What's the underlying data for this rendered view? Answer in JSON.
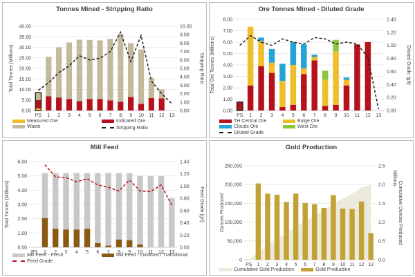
{
  "chart_data": [
    {
      "id": "tonnes-mined",
      "type": "bar",
      "title": "Tonnes Mined - Stripping Ratio",
      "ylabel": "Total Tonnes (Millions)",
      "y2label": "Stripping Ratio",
      "ylim": [
        0,
        40
      ],
      "yticks": [
        0,
        5,
        10,
        15,
        20,
        25,
        30,
        35,
        40
      ],
      "ytick_fmt": "0.00",
      "y2lim": [
        0,
        10
      ],
      "y2ticks": [
        0,
        1,
        2,
        3,
        4,
        5,
        6,
        7,
        8,
        9,
        10
      ],
      "y2tick_fmt": "0.00",
      "categories": [
        "PS",
        "1",
        "2",
        "3",
        "4",
        "5",
        "6",
        "7",
        "8",
        "9",
        "10",
        "11",
        "12",
        "13"
      ],
      "stacked": true,
      "series": [
        {
          "name": "Measured Ore",
          "color": "#f0be2a",
          "values": [
            1,
            0,
            0,
            0,
            0,
            0,
            0,
            0,
            0,
            0,
            0,
            0,
            0,
            0
          ]
        },
        {
          "name": "Indicated Ore",
          "color": "#b5121b",
          "values": [
            4,
            6.8,
            6.2,
            5.5,
            4.5,
            5.5,
            5.5,
            4.8,
            4.2,
            6.4,
            3.2,
            6,
            5.8,
            0
          ]
        },
        {
          "name": "Waste",
          "color": "#c3b99d",
          "values": [
            3.5,
            18.7,
            23.8,
            26.8,
            29.1,
            28,
            27.8,
            29.2,
            32.1,
            25.6,
            25.8,
            9.5,
            4.2,
            0
          ]
        }
      ],
      "lines": [
        {
          "name": "Stripping Ratio",
          "color": "#222222",
          "dashed": true,
          "axis": "right",
          "values": [
            2.4,
            3.3,
            4.5,
            5.3,
            6.5,
            6.0,
            6.2,
            7.0,
            9.3,
            5.8,
            8.9,
            3.5,
            2.0,
            0.8
          ]
        }
      ]
    },
    {
      "id": "ore-tonnes",
      "type": "bar",
      "title": "Ore Tonnes Mined - Diluted Grade",
      "ylabel": "Total Ore Tonnes (Millions)",
      "y2label": "Diluted Grade (g/t)",
      "ylim": [
        0,
        8
      ],
      "yticks": [
        0,
        1,
        2,
        3,
        4,
        5,
        6,
        7,
        8
      ],
      "ytick_fmt": "0.00",
      "y2lim": [
        0,
        1.4
      ],
      "y2ticks": [
        0,
        0.2,
        0.4,
        0.6,
        0.8,
        1.0,
        1.2,
        1.4
      ],
      "y2tick_fmt": "0.00",
      "categories": [
        "PS",
        "1",
        "2",
        "3",
        "4",
        "5",
        "6",
        "7",
        "8",
        "9",
        "10",
        "11",
        "12",
        "13"
      ],
      "stacked": true,
      "series": [
        {
          "name": "TH Central Ore",
          "color": "#b5121b",
          "values": [
            0.75,
            2.2,
            3.9,
            3.3,
            0.3,
            0.5,
            3.2,
            4.4,
            0.4,
            0.5,
            2.2,
            5.8,
            6.0,
            0
          ]
        },
        {
          "name": "Bulge Ore",
          "color": "#f0be2a",
          "values": [
            0,
            5.15,
            2.2,
            0.9,
            2.3,
            3.5,
            0.5,
            0.3,
            2.3,
            4.7,
            0.5,
            0,
            0,
            0
          ]
        },
        {
          "name": "Clouds Ore",
          "color": "#21a5d8",
          "values": [
            0,
            0,
            0.3,
            1.2,
            1.5,
            2.0,
            2.1,
            0.2,
            0,
            0,
            0.2,
            0,
            0,
            0
          ]
        },
        {
          "name": "West Ore",
          "color": "#8cc63f",
          "values": [
            0,
            0,
            0,
            0,
            0,
            0,
            0,
            0,
            0.8,
            1.0,
            0,
            0,
            0,
            0
          ]
        }
      ],
      "lines": [
        {
          "name": "Diluted Grade",
          "color": "#222222",
          "dashed": true,
          "axis": "right",
          "values": [
            1.0,
            1.15,
            1.05,
            1.0,
            1.1,
            1.05,
            1.02,
            1.12,
            1.1,
            1.02,
            1.05,
            1.02,
            0.82,
            0.02
          ]
        }
      ],
      "ps_outline": true
    },
    {
      "id": "mill-feed",
      "type": "bar",
      "title": "Mill Feed",
      "ylabel": "Total Tonnes (Millions)",
      "y2label": "Feed Grade (g/t)",
      "ylim": [
        0,
        6
      ],
      "yticks": [
        0,
        1,
        2,
        3,
        4,
        5,
        6
      ],
      "ytick_fmt": "0.00",
      "y2lim": [
        0,
        1.4
      ],
      "y2ticks": [
        0,
        0.2,
        0.4,
        0.6,
        0.8,
        1.0,
        1.2,
        1.4
      ],
      "y2tick_fmt": "0.00",
      "categories": [
        "PS",
        "1",
        "2",
        "3",
        "4",
        "5",
        "6",
        "7",
        "8",
        "9",
        "10",
        "11",
        "12",
        "13"
      ],
      "stacked": true,
      "series": [
        {
          "name": "Mill Feed - Oxidised / Transitional",
          "color": "#8a5a14",
          "values": [
            0,
            2.05,
            1.3,
            1.25,
            1.25,
            1.3,
            0.3,
            0.12,
            0.55,
            0.5,
            0.2,
            0,
            0,
            0
          ]
        },
        {
          "name": "Mill Feed - Fresh",
          "color": "#c8c8c8",
          "values": [
            0,
            3.15,
            3.9,
            3.95,
            3.95,
            3.9,
            4.9,
            5.08,
            4.65,
            4.7,
            4.8,
            5.0,
            5.0,
            3.45
          ]
        }
      ],
      "lines": [
        {
          "name": "Feed Grade",
          "color": "#b5121b",
          "dashed": true,
          "axis": "right",
          "values": [
            null,
            1.35,
            1.15,
            1.14,
            1.07,
            1.12,
            1.02,
            0.98,
            0.92,
            1.1,
            0.92,
            0.91,
            1.02,
            0.69
          ]
        }
      ]
    },
    {
      "id": "gold-production",
      "type": "bar",
      "title": "Gold Production",
      "ylabel": "Ounces Produced",
      "y2label": "Cumulative Ounces Produced",
      "y2unit": "Millions",
      "ylim": [
        0,
        250000
      ],
      "yticks": [
        0,
        50000,
        100000,
        150000,
        200000,
        250000
      ],
      "ytick_fmt": "0,0",
      "y2lim": [
        0,
        2.5
      ],
      "y2ticks": [
        0,
        0.5,
        1.0,
        1.5,
        2.0,
        2.5
      ],
      "y2tick_fmt": "0.0",
      "categories": [
        "PS",
        "1",
        "2",
        "3",
        "4",
        "5",
        "6",
        "7",
        "8",
        "9",
        "10",
        "11",
        "12",
        "13"
      ],
      "stacked": false,
      "series": [
        {
          "name": "Gold Production",
          "color": "#c2a234",
          "values": [
            0,
            203000,
            176000,
            173000,
            154000,
            176000,
            151000,
            148000,
            138000,
            172000,
            136000,
            135000,
            155000,
            71000
          ]
        }
      ],
      "areas": [
        {
          "name": "Cumulative Gold Production",
          "color": "#ece9dd",
          "axis": "right",
          "values": [
            0,
            0.2,
            0.38,
            0.55,
            0.71,
            0.88,
            1.03,
            1.18,
            1.32,
            1.49,
            1.63,
            1.76,
            1.92,
            1.99
          ]
        }
      ]
    }
  ]
}
